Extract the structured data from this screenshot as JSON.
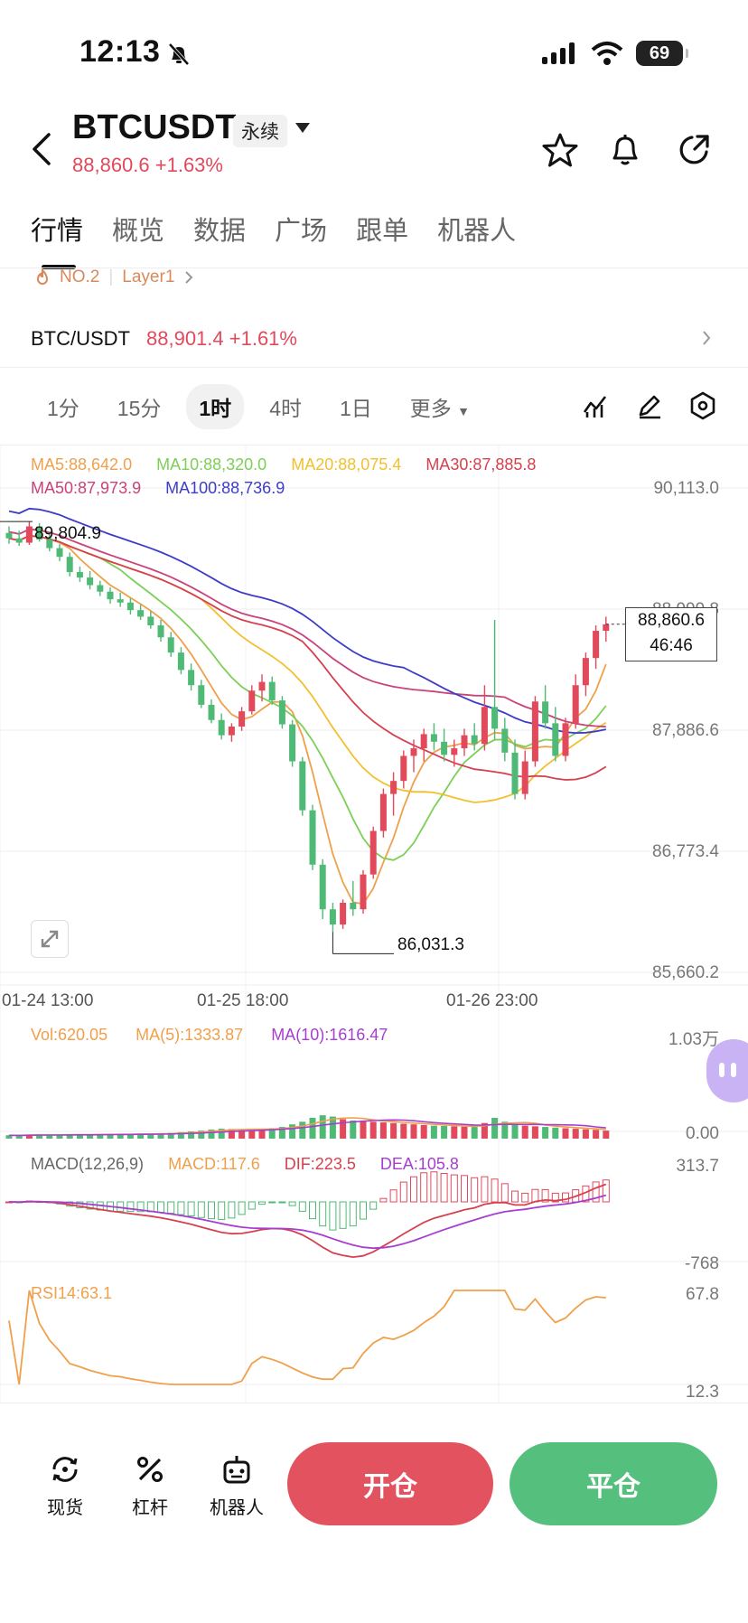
{
  "status_bar": {
    "time": "12:13",
    "battery": "69"
  },
  "header": {
    "pair": "BTCUSDT",
    "contract_tag": "永续",
    "price_change": "88,860.6 +1.63%"
  },
  "nav_tabs": [
    "行情",
    "概览",
    "数据",
    "广场",
    "跟单",
    "机器人"
  ],
  "rank": {
    "rank_label": "NO.2",
    "category": "Layer1"
  },
  "spot_pair": {
    "name": "BTC/USDT",
    "price_change": "88,901.4 +1.61%"
  },
  "timeframes": [
    "1分",
    "15分",
    "1时",
    "4时",
    "1日",
    "更多"
  ],
  "chart": {
    "ma_legend": [
      "MA5:88,642.0",
      "MA10:88,320.0",
      "MA20:88,075.4",
      "MA30:87,885.8",
      "MA50:87,973.9",
      "MA100:88,736.9"
    ],
    "y_ticks": [
      "90,113.0",
      "88,999.8",
      "87,886.6",
      "86,773.4",
      "85,660.2"
    ],
    "high_label": "89,804.9",
    "low_label": "86,031.3",
    "current_price": "88,860.6",
    "countdown": "46:46",
    "x_ticks": [
      "01-24 13:00",
      "01-25 18:00",
      "01-26 23:00"
    ],
    "colors": {
      "up": "#e2495b",
      "down": "#4fba76",
      "ma5": "#f0a04b",
      "ma10": "#7ccf57",
      "ma20": "#f2c02f",
      "ma30": "#d6404f",
      "ma50": "#c9427a",
      "ma100": "#3d3cc8"
    }
  },
  "volume": {
    "vol": "Vol:620.05",
    "ma5": "MA(5):1333.87",
    "ma10": "MA(10):1616.47",
    "top": "1.03万",
    "bottom": "0.00"
  },
  "macd": {
    "title": "MACD(12,26,9)",
    "macd": "MACD:117.6",
    "dif": "DIF:223.5",
    "dea": "DEA:105.8",
    "top": "313.7",
    "bottom": "-768"
  },
  "rsi": {
    "title": "RSI14:63.1",
    "top": "67.8",
    "bottom": "12.3"
  },
  "bottom_bar": {
    "spot": "现货",
    "leverage": "杠杆",
    "bot": "机器人",
    "open": "开仓",
    "close": "平仓"
  },
  "chart_data": {
    "type": "candlestick",
    "candles": [
      [
        89700,
        89760,
        89600,
        89650
      ],
      [
        89650,
        89720,
        89580,
        89610
      ],
      [
        89610,
        89805,
        89590,
        89760
      ],
      [
        89760,
        89790,
        89620,
        89640
      ],
      [
        89640,
        89700,
        89530,
        89560
      ],
      [
        89560,
        89600,
        89440,
        89480
      ],
      [
        89480,
        89520,
        89300,
        89340
      ],
      [
        89340,
        89390,
        89250,
        89290
      ],
      [
        89290,
        89350,
        89180,
        89220
      ],
      [
        89220,
        89260,
        89120,
        89160
      ],
      [
        89160,
        89200,
        89050,
        89090
      ],
      [
        89090,
        89150,
        89020,
        89060
      ],
      [
        89060,
        89100,
        88950,
        88990
      ],
      [
        88990,
        89040,
        88900,
        88930
      ],
      [
        88930,
        88980,
        88820,
        88850
      ],
      [
        88850,
        88900,
        88700,
        88740
      ],
      [
        88740,
        88790,
        88560,
        88600
      ],
      [
        88600,
        88650,
        88400,
        88440
      ],
      [
        88440,
        88500,
        88250,
        88300
      ],
      [
        88300,
        88350,
        88090,
        88120
      ],
      [
        88120,
        88170,
        87950,
        87980
      ],
      [
        87980,
        88040,
        87800,
        87840
      ],
      [
        87840,
        87950,
        87780,
        87920
      ],
      [
        87920,
        88100,
        87880,
        88060
      ],
      [
        88060,
        88300,
        88030,
        88250
      ],
      [
        88250,
        88400,
        88150,
        88330
      ],
      [
        88330,
        88380,
        88120,
        88160
      ],
      [
        88160,
        88200,
        87900,
        87940
      ],
      [
        87940,
        87980,
        87550,
        87600
      ],
      [
        87600,
        87640,
        87100,
        87150
      ],
      [
        87150,
        87200,
        86600,
        86650
      ],
      [
        86650,
        86700,
        86150,
        86240
      ],
      [
        86240,
        86300,
        86031,
        86100
      ],
      [
        86100,
        86330,
        86060,
        86300
      ],
      [
        86300,
        86500,
        86180,
        86240
      ],
      [
        86240,
        86600,
        86200,
        86560
      ],
      [
        86560,
        87000,
        86520,
        86960
      ],
      [
        86960,
        87350,
        86900,
        87300
      ],
      [
        87300,
        87500,
        87100,
        87420
      ],
      [
        87420,
        87700,
        87350,
        87650
      ],
      [
        87650,
        87800,
        87500,
        87720
      ],
      [
        87720,
        87900,
        87600,
        87850
      ],
      [
        87850,
        87950,
        87700,
        87780
      ],
      [
        87780,
        87900,
        87600,
        87660
      ],
      [
        87660,
        87800,
        87550,
        87720
      ],
      [
        87720,
        87900,
        87650,
        87840
      ],
      [
        87840,
        87950,
        87700,
        87760
      ],
      [
        87760,
        88300,
        87700,
        88100
      ],
      [
        88100,
        88900,
        87800,
        87900
      ],
      [
        87900,
        88000,
        87600,
        87680
      ],
      [
        87680,
        87800,
        87250,
        87300
      ],
      [
        87300,
        87700,
        87250,
        87600
      ],
      [
        87600,
        88200,
        87550,
        88150
      ],
      [
        88150,
        88300,
        87900,
        87950
      ],
      [
        87950,
        88100,
        87600,
        87650
      ],
      [
        87650,
        88000,
        87600,
        87950
      ],
      [
        87950,
        88400,
        87900,
        88300
      ],
      [
        88300,
        88600,
        88200,
        88550
      ],
      [
        88550,
        88850,
        88450,
        88800
      ],
      [
        88800,
        88930,
        88700,
        88860
      ]
    ],
    "volume": [
      260,
      240,
      300,
      280,
      310,
      290,
      330,
      320,
      300,
      350,
      330,
      360,
      340,
      380,
      370,
      420,
      450,
      500,
      560,
      620,
      700,
      760,
      740,
      680,
      720,
      760,
      800,
      900,
      1100,
      1300,
      1600,
      1800,
      1700,
      1500,
      1400,
      1350,
      1300,
      1250,
      1200,
      1150,
      1100,
      1050,
      1000,
      980,
      950,
      920,
      900,
      1200,
      1600,
      1300,
      1100,
      1000,
      950,
      900,
      850,
      800,
      760,
      720,
      680,
      620
    ],
    "ma_overlays": "MA5, MA10, MA20, MA30, MA50, MA100"
  }
}
